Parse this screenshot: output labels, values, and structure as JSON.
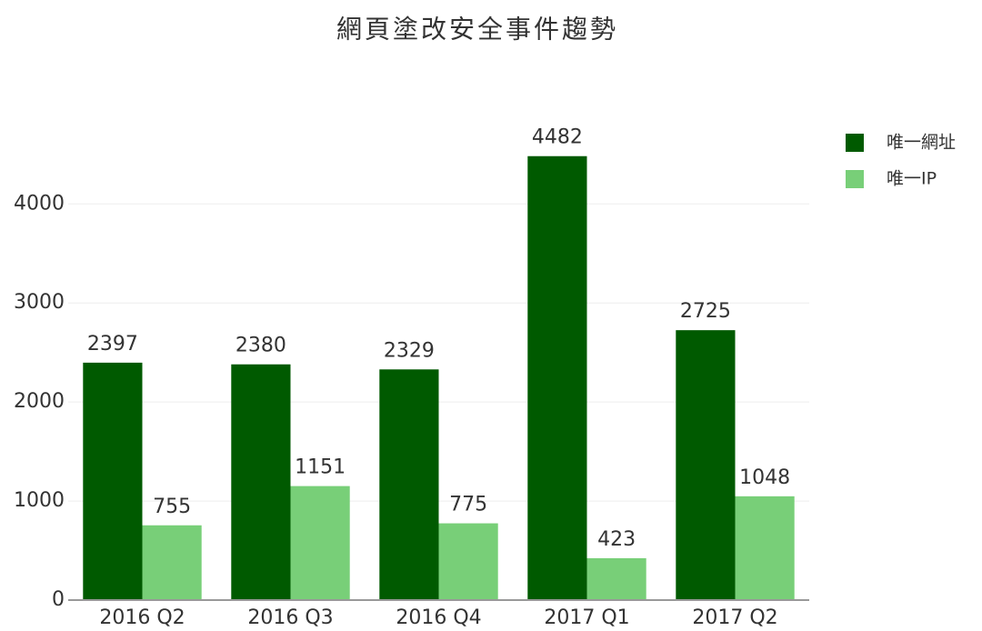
{
  "chart_data": {
    "type": "bar",
    "title": "網頁塗改安全事件趨勢",
    "categories": [
      "2016 Q2",
      "2016 Q3",
      "2016 Q4",
      "2017 Q1",
      "2017 Q2"
    ],
    "series": [
      {
        "name": "唯一網址",
        "color": "#005a00",
        "values": [
          2397,
          2380,
          2329,
          4482,
          2725
        ]
      },
      {
        "name": "唯一IP",
        "color": "#78cf78",
        "values": [
          755,
          1151,
          775,
          423,
          1048
        ]
      }
    ],
    "ylim": [
      0,
      4700
    ],
    "yticks": [
      0,
      1000,
      2000,
      3000,
      4000
    ],
    "grid": true,
    "legend": "top-right"
  }
}
